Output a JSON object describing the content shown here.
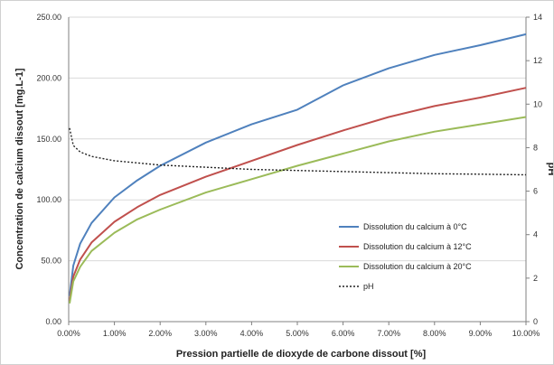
{
  "chart_data": {
    "type": "line",
    "xlabel": "Pression partielle de dioxyde de carbone dissout [%]",
    "ylabel": "Concentration de calcium dissout [mg.L-1]",
    "y2label": "pH",
    "xlim": [
      0,
      10
    ],
    "ylim": [
      0,
      250
    ],
    "y2lim": [
      0,
      14
    ],
    "x_ticks": [
      "0.00%",
      "1.00%",
      "2.00%",
      "3.00%",
      "4.00%",
      "5.00%",
      "6.00%",
      "7.00%",
      "8.00%",
      "9.00%",
      "10.00%"
    ],
    "y_ticks": [
      "0.00",
      "50.00",
      "100.00",
      "150.00",
      "200.00",
      "250.00"
    ],
    "y2_ticks": [
      "0",
      "2",
      "4",
      "6",
      "8",
      "10",
      "12",
      "14"
    ],
    "grid": "horizontal",
    "legend_position": "lower-right",
    "x": [
      0.02,
      0.1,
      0.25,
      0.5,
      1,
      1.5,
      2,
      3,
      4,
      5,
      6,
      7,
      8,
      9,
      10
    ],
    "series": [
      {
        "name": "Dissolution du calcium à 0°C",
        "axis": "left",
        "color": "#4f81bd",
        "style": "solid",
        "values": [
          21,
          46,
          64,
          81,
          102,
          116,
          128,
          147,
          162,
          174,
          194,
          208,
          219,
          227,
          236
        ]
      },
      {
        "name": "Dissolution du calcium à 12°C",
        "axis": "left",
        "color": "#c0504d",
        "style": "solid",
        "values": [
          17,
          37,
          51,
          65,
          82,
          94,
          104,
          119,
          132,
          145,
          157,
          168,
          177,
          184,
          192
        ]
      },
      {
        "name": "Dissolution du calcium à 20°C",
        "axis": "left",
        "color": "#9bbb59",
        "style": "solid",
        "values": [
          15,
          33,
          45,
          58,
          73,
          84,
          92,
          106,
          117,
          128,
          138,
          148,
          156,
          162,
          168
        ]
      },
      {
        "name": "pH",
        "axis": "right",
        "color": "#222222",
        "style": "dotted",
        "values": [
          8.9,
          8.1,
          7.8,
          7.6,
          7.4,
          7.3,
          7.2,
          7.1,
          7.0,
          6.95,
          6.9,
          6.85,
          6.8,
          6.78,
          6.75
        ]
      }
    ]
  }
}
